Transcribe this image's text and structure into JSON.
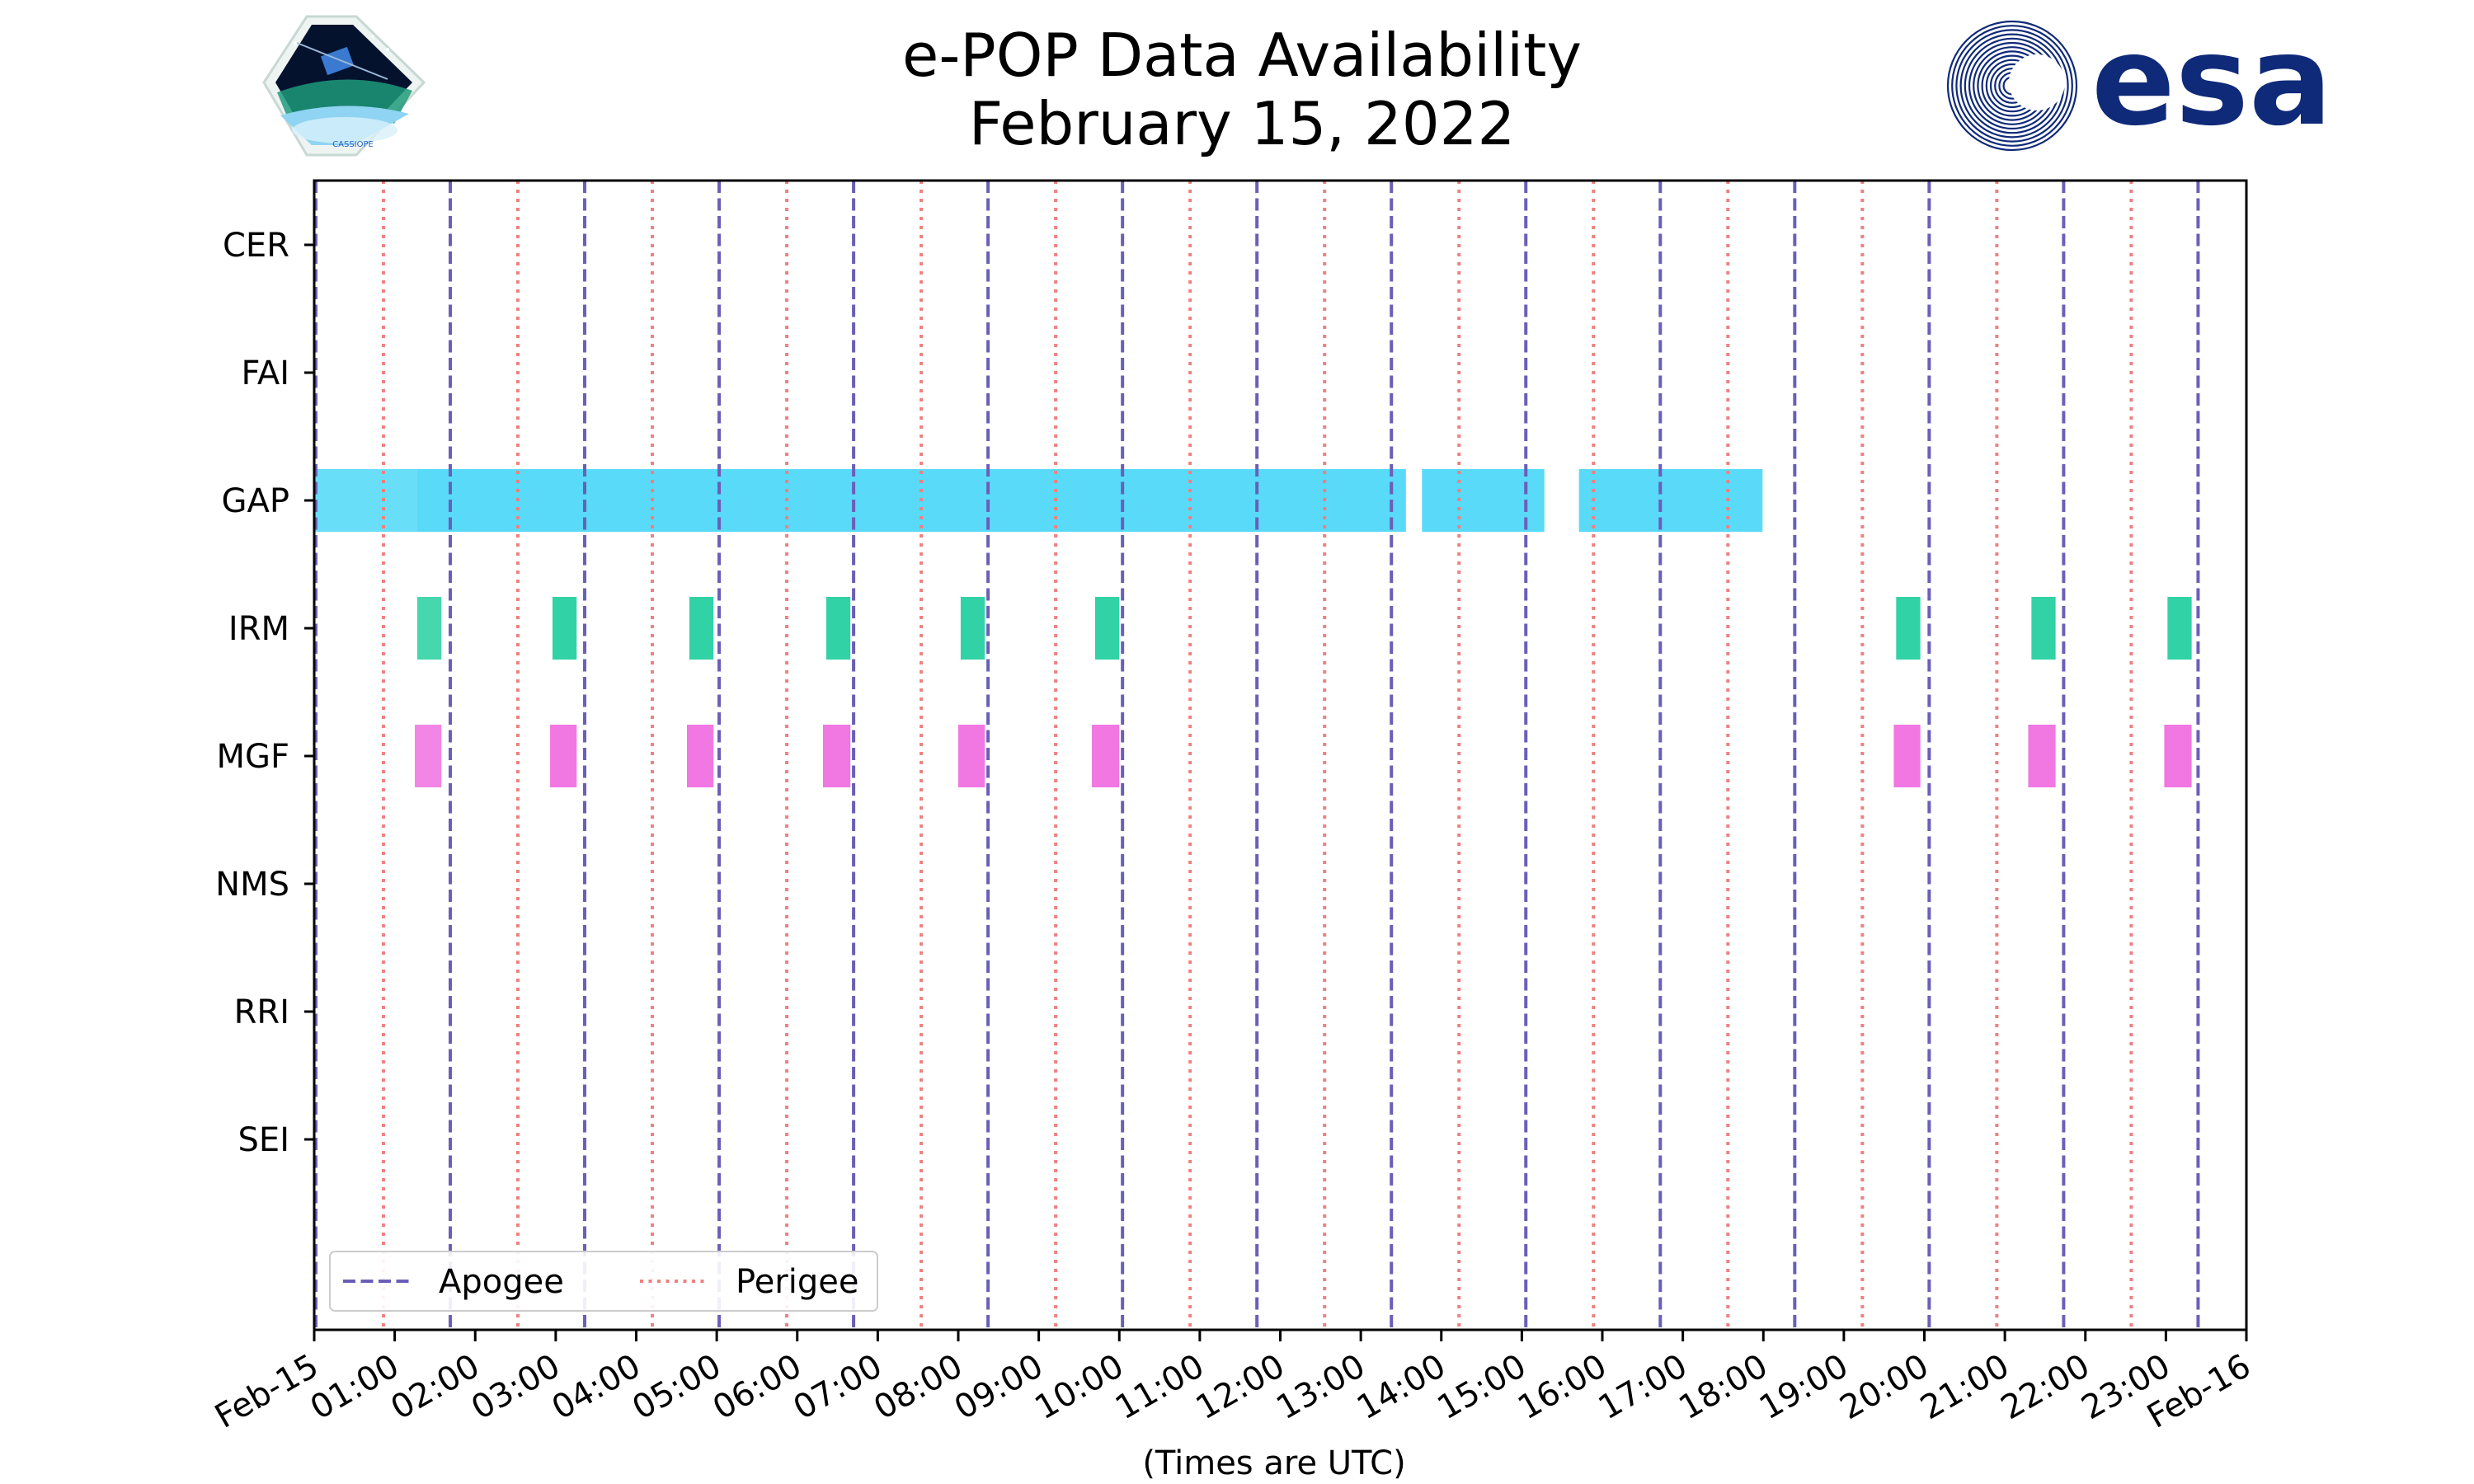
{
  "chart_data": {
    "type": "timeline",
    "title_lines": [
      "e-POP Data Availability",
      "February 15, 2022"
    ],
    "xlabel": "(Times are UTC)",
    "x_range_hours": [
      0,
      24
    ],
    "x_ticks": [
      {
        "hour": 0,
        "label": "Feb-15"
      },
      {
        "hour": 1,
        "label": "01:00"
      },
      {
        "hour": 2,
        "label": "02:00"
      },
      {
        "hour": 3,
        "label": "03:00"
      },
      {
        "hour": 4,
        "label": "04:00"
      },
      {
        "hour": 5,
        "label": "05:00"
      },
      {
        "hour": 6,
        "label": "06:00"
      },
      {
        "hour": 7,
        "label": "07:00"
      },
      {
        "hour": 8,
        "label": "08:00"
      },
      {
        "hour": 9,
        "label": "09:00"
      },
      {
        "hour": 10,
        "label": "10:00"
      },
      {
        "hour": 11,
        "label": "11:00"
      },
      {
        "hour": 12,
        "label": "12:00"
      },
      {
        "hour": 13,
        "label": "13:00"
      },
      {
        "hour": 14,
        "label": "14:00"
      },
      {
        "hour": 15,
        "label": "15:00"
      },
      {
        "hour": 16,
        "label": "16:00"
      },
      {
        "hour": 17,
        "label": "17:00"
      },
      {
        "hour": 18,
        "label": "18:00"
      },
      {
        "hour": 19,
        "label": "19:00"
      },
      {
        "hour": 20,
        "label": "20:00"
      },
      {
        "hour": 21,
        "label": "21:00"
      },
      {
        "hour": 22,
        "label": "22:00"
      },
      {
        "hour": 23,
        "label": "23:00"
      },
      {
        "hour": 24,
        "label": "Feb-16"
      }
    ],
    "instruments": [
      "CER",
      "FAI",
      "GAP",
      "IRM",
      "MGF",
      "NMS",
      "RRI",
      "SEI"
    ],
    "apogee_hours": [
      0.02,
      1.69,
      3.36,
      5.03,
      6.7,
      8.37,
      10.04,
      11.71,
      13.38,
      15.05,
      16.72,
      18.39,
      20.06,
      21.73,
      23.4
    ],
    "perigee_hours": [
      0.86,
      2.53,
      4.2,
      5.87,
      7.54,
      9.21,
      10.88,
      12.55,
      14.22,
      15.89,
      17.56,
      19.23,
      20.9,
      22.57
    ],
    "series": [
      {
        "name": "CER",
        "color": "#4fd8f8",
        "segments": []
      },
      {
        "name": "FAI",
        "color": "#4fd8f8",
        "segments": []
      },
      {
        "name": "GAP",
        "color": "#4fd8f8",
        "segments": [
          [
            0.0,
            1.28
          ],
          [
            1.28,
            13.56
          ],
          [
            13.76,
            15.28
          ],
          [
            15.71,
            17.47
          ],
          [
            17.47,
            17.99
          ]
        ]
      },
      {
        "name": "IRM",
        "color": "#26d0a0",
        "segments": [
          [
            1.28,
            1.58
          ],
          [
            2.96,
            3.26
          ],
          [
            4.66,
            4.96
          ],
          [
            6.36,
            6.66
          ],
          [
            8.03,
            8.33
          ],
          [
            9.7,
            10.0
          ],
          [
            19.65,
            19.95
          ],
          [
            21.33,
            21.63
          ],
          [
            23.02,
            23.32
          ]
        ]
      },
      {
        "name": "MGF",
        "color": "#f070e0",
        "segments": [
          [
            1.25,
            1.58
          ],
          [
            2.93,
            3.26
          ],
          [
            4.63,
            4.96
          ],
          [
            6.32,
            6.66
          ],
          [
            8.0,
            8.33
          ],
          [
            9.66,
            10.0
          ],
          [
            19.62,
            19.95
          ],
          [
            21.29,
            21.63
          ],
          [
            22.98,
            23.32
          ]
        ]
      },
      {
        "name": "NMS",
        "color": "#4fd8f8",
        "segments": []
      },
      {
        "name": "RRI",
        "color": "#4fd8f8",
        "segments": []
      },
      {
        "name": "SEI",
        "color": "#4fd8f8",
        "segments": []
      }
    ],
    "legend": {
      "position": "lower-left",
      "entries": [
        {
          "label": "Apogee",
          "style": "dashed",
          "color": "#6a5fb8"
        },
        {
          "label": "Perigee",
          "style": "dotted",
          "color": "#f08080"
        }
      ]
    },
    "colors": {
      "apogee": "#6a5fb8",
      "perigee": "#f08080",
      "axis": "#000000"
    }
  },
  "logos": {
    "left_caption": "CASSIOPE",
    "right_text": "esa"
  }
}
